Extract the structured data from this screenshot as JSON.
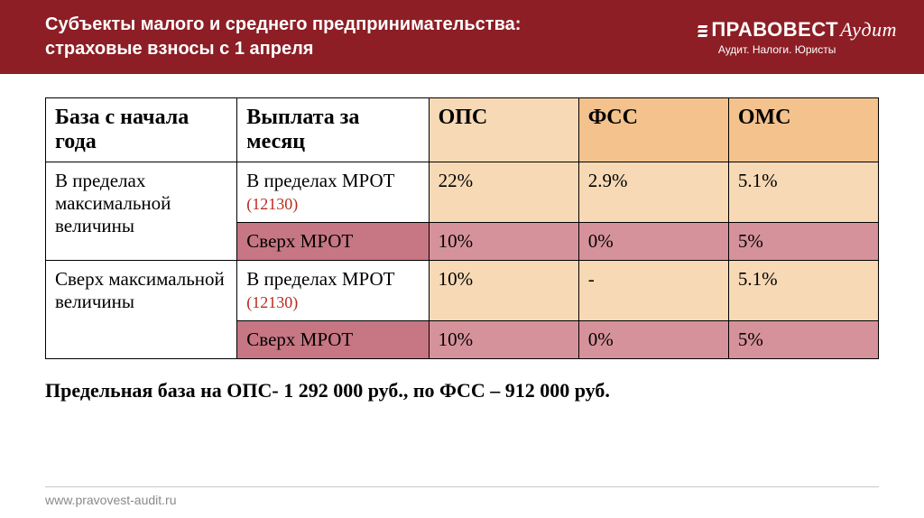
{
  "header": {
    "title_line1": "Субъекты малого и среднего предпринимательства:",
    "title_line2": "страховые взносы с 1 апреля",
    "logo_main": "ПРАВОВЕСТ",
    "logo_suffix": "Аудит",
    "logo_tagline": "Аудит. Налоги. Юристы"
  },
  "table": {
    "columns": [
      {
        "label": "База с начала года",
        "bg": "th-white",
        "width": "23%"
      },
      {
        "label": "Выплата за месяц",
        "bg": "th-white",
        "width": "23%"
      },
      {
        "label": "ОПС",
        "bg": "th-light",
        "width": "18%"
      },
      {
        "label": "ФСС",
        "bg": "th-mid",
        "width": "18%"
      },
      {
        "label": "ОМС",
        "bg": "th-mid",
        "width": "18%"
      }
    ],
    "groups": [
      {
        "base_label": "В пределах максимальной величины",
        "rows": [
          {
            "pay_label": "В пределах МРОТ",
            "pay_note": "(12130)",
            "ops": "22%",
            "fss": "2.9%",
            "oms": "5.1%",
            "bg_pay": "cell-white",
            "bg_val": "cell-light",
            "short": false
          },
          {
            "pay_label": "Сверх МРОТ",
            "pay_note": "",
            "ops": "10%",
            "fss": "0%",
            "oms": "5%",
            "bg_pay": "cell-rose",
            "bg_val": "cell-pink",
            "short": false
          }
        ]
      },
      {
        "base_label": "Сверх максимальной величины",
        "rows": [
          {
            "pay_label": "В пределах МРОТ",
            "pay_note": "(12130)",
            "ops": "10%",
            "fss": "-",
            "oms": "5.1%",
            "bg_pay": "cell-white",
            "bg_val": "cell-light",
            "short": false
          },
          {
            "pay_label": "Сверх МРОТ",
            "pay_note": "",
            "ops": "10%",
            "fss": "0%",
            "oms": "5%",
            "bg_pay": "cell-rose",
            "bg_val": "cell-pink",
            "short": true
          }
        ]
      }
    ]
  },
  "footer_note": "Предельная база на ОПС- 1 292 000 руб.,  по ФСС – 912 000 руб.",
  "site_url": "www.pravovest-audit.ru",
  "colors": {
    "header_bg": "#8d1e25",
    "th_light": "#f7d9b5",
    "th_mid": "#f3c28d",
    "cell_pink": "#d6929b",
    "cell_rose": "#c77683",
    "mrot_note": "#bb2a1e"
  }
}
